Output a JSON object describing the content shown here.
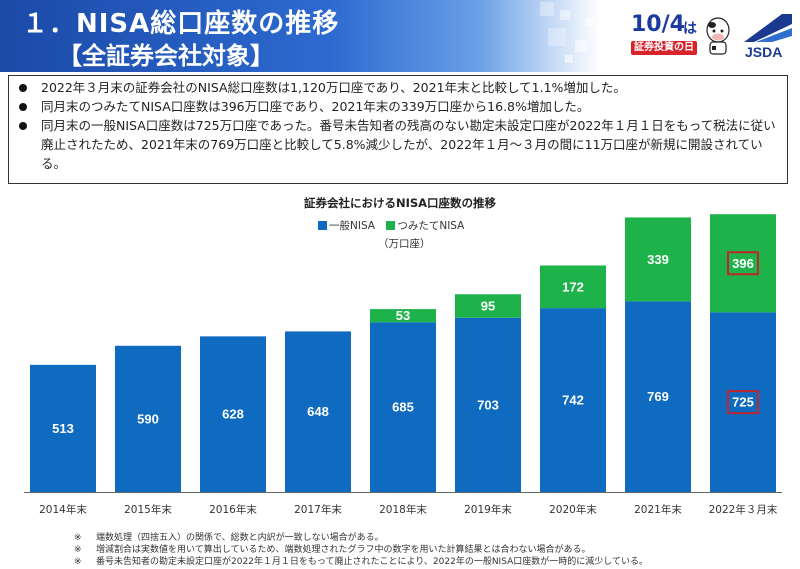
{
  "header": {
    "title_line1": "１．NISA総口座数の推移",
    "title_line2": "【全証券会社対象】"
  },
  "logos": {
    "event_big": "10/4",
    "event_ha": "は",
    "event_caption": "証券投資の日",
    "org_name": "JSDA"
  },
  "bullets": [
    "2022年３月末の証券会社のNISA総口座数は1,120万口座であり、2021年末と比較して1.1%増加した。",
    "同月末のつみたてNISA口座数は396万口座であり、2021年末の339万口座から16.8%増加した。",
    "同月末の一般NISA口座数は725万口座であった。番号未告知者の残高のない勘定未設定口座が2022年１月１日をもって税法に従い廃止されたため、2021年末の769万口座と比較して5.8%減少したが、2022年１月～３月の間に11万口座が新規に開設されている。"
  ],
  "chart_data": {
    "type": "bar",
    "stacked": true,
    "title": "証券会社におけるNISA口座数の推移",
    "unit": "（万口座）",
    "categories": [
      "2014年末",
      "2015年末",
      "2016年末",
      "2017年末",
      "2018年末",
      "2019年末",
      "2020年末",
      "2021年末",
      "2022年３月末"
    ],
    "series": [
      {
        "name": "一般NISA",
        "color": "#0f6bc0",
        "values": [
          513,
          590,
          628,
          648,
          685,
          703,
          742,
          769,
          725
        ]
      },
      {
        "name": "つみたてNISA",
        "color": "#1db34a",
        "values": [
          null,
          null,
          null,
          null,
          53,
          95,
          172,
          339,
          396
        ]
      }
    ],
    "ylim": [
      0,
      1150
    ],
    "highlight": {
      "category_index": 8,
      "color": "#c0262c"
    },
    "grid": false,
    "legend_position": "top"
  },
  "notes": [
    {
      "mark": "※",
      "text": "端数処理（四捨五入）の関係で、総数と内訳が一致しない場合がある。"
    },
    {
      "mark": "※",
      "text": "増減割合は実数値を用いて算出しているため、端数処理されたグラフ中の数字を用いた計算結果とは合わない場合がある。"
    },
    {
      "mark": "※",
      "text": "番号未告知者の勘定未設定口座が2022年１月１日をもって廃止されたことにより、2022年の一般NISA口座数が一時的に減少している。"
    }
  ]
}
